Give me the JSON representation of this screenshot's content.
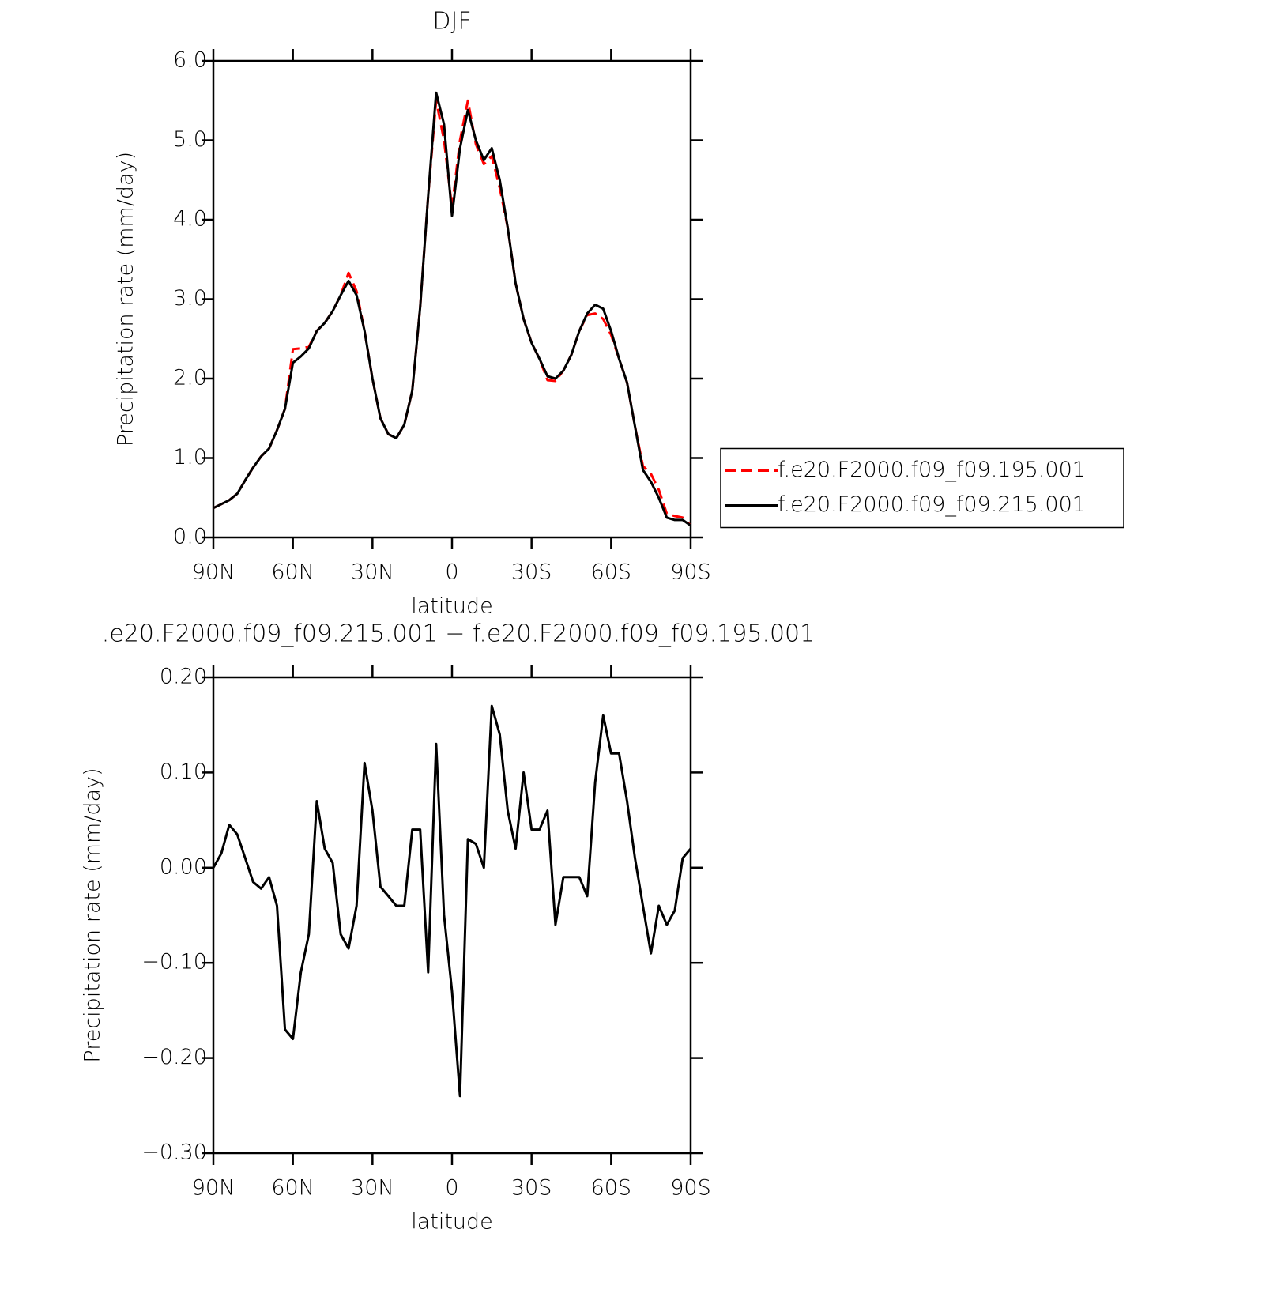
{
  "chart_data": [
    {
      "type": "line",
      "title": "DJF",
      "xlabel": "latitude",
      "ylabel": "Precipitation rate (mm/day)",
      "x": [
        90,
        87,
        84,
        81,
        78,
        75,
        72,
        69,
        66,
        63,
        60,
        57,
        54,
        51,
        48,
        45,
        42,
        39,
        36,
        33,
        30,
        27,
        24,
        21,
        18,
        15,
        12,
        9,
        6,
        3,
        0,
        -3,
        -6,
        -9,
        -12,
        -15,
        -18,
        -21,
        -24,
        -27,
        -30,
        -33,
        -36,
        -39,
        -42,
        -45,
        -48,
        -51,
        -54,
        -57,
        -60,
        -63,
        -66,
        -69,
        -72,
        -75,
        -78,
        -81,
        -84,
        -87,
        -90
      ],
      "series": [
        {
          "name": "f.e20.F2000.f09_f09.195.001",
          "color": "#ff0000",
          "linestyle": "dashed",
          "values": [
            0.37,
            0.42,
            0.47,
            0.55,
            0.72,
            0.88,
            1.02,
            1.12,
            1.35,
            1.62,
            2.37,
            2.38,
            2.4,
            2.6,
            2.7,
            2.85,
            3.05,
            3.33,
            3.1,
            2.6,
            2.0,
            1.5,
            1.3,
            1.25,
            1.42,
            1.85,
            2.9,
            4.3,
            5.5,
            5.0,
            4.15,
            5.0,
            5.5,
            4.95,
            4.7,
            4.8,
            4.4,
            3.9,
            3.2,
            2.75,
            2.45,
            2.25,
            1.98,
            1.97,
            2.1,
            2.3,
            2.6,
            2.8,
            2.82,
            2.75,
            2.55,
            2.25,
            1.95,
            1.4,
            0.9,
            0.8,
            0.6,
            0.3,
            0.27,
            0.25,
            0.15
          ]
        },
        {
          "name": "f.e20.F2000.f09_f09.215.001",
          "color": "#000000",
          "linestyle": "solid",
          "values": [
            0.37,
            0.42,
            0.47,
            0.55,
            0.72,
            0.88,
            1.02,
            1.12,
            1.35,
            1.62,
            2.2,
            2.28,
            2.38,
            2.6,
            2.7,
            2.85,
            3.05,
            3.23,
            3.05,
            2.6,
            2.0,
            1.5,
            1.3,
            1.25,
            1.42,
            1.85,
            2.9,
            4.3,
            5.6,
            5.2,
            4.05,
            4.9,
            5.38,
            5.0,
            4.75,
            4.9,
            4.5,
            3.9,
            3.2,
            2.75,
            2.45,
            2.25,
            2.03,
            2.0,
            2.1,
            2.3,
            2.6,
            2.82,
            2.93,
            2.88,
            2.6,
            2.25,
            1.95,
            1.4,
            0.85,
            0.7,
            0.5,
            0.25,
            0.22,
            0.22,
            0.15
          ]
        }
      ],
      "xlim": [
        90,
        -90
      ],
      "xticks": [
        {
          "value": 90,
          "label": "90N"
        },
        {
          "value": 60,
          "label": "60N"
        },
        {
          "value": 30,
          "label": "30N"
        },
        0,
        {
          "value": -30,
          "label": "30S"
        },
        {
          "value": -60,
          "label": "60S"
        },
        {
          "value": -90,
          "label": "90S"
        }
      ],
      "ylim": [
        0,
        6
      ],
      "yticks": [
        {
          "value": 0,
          "label": "0.0"
        },
        {
          "value": 1,
          "label": "1.0"
        },
        {
          "value": 2,
          "label": "2.0"
        },
        {
          "value": 3,
          "label": "3.0"
        },
        {
          "value": 4,
          "label": "4.0"
        },
        {
          "value": 5,
          "label": "5.0"
        },
        {
          "value": 6,
          "label": "6.0"
        }
      ],
      "legend": "right"
    },
    {
      "type": "line",
      "title": ".e20.F2000.f09_f09.215.001 − f.e20.F2000.f09_f09.195.001",
      "xlabel": "latitude",
      "ylabel": "Precipitation rate (mm/day)",
      "x": [
        90,
        87,
        84,
        81,
        78,
        75,
        72,
        69,
        66,
        63,
        60,
        57,
        54,
        51,
        48,
        45,
        42,
        39,
        36,
        33,
        30,
        27,
        24,
        21,
        18,
        15,
        12,
        9,
        6,
        3,
        0,
        -3,
        -6,
        -9,
        -12,
        -15,
        -18,
        -21,
        -24,
        -27,
        -30,
        -33,
        -36,
        -39,
        -42,
        -45,
        -48,
        -51,
        -54,
        -57,
        -60,
        -63,
        -66,
        -69,
        -72,
        -75,
        -78,
        -81,
        -84,
        -87,
        -90
      ],
      "series": [
        {
          "color": "#000000",
          "linestyle": "solid",
          "values": [
            0.0,
            0.015,
            0.045,
            0.035,
            0.01,
            -0.015,
            -0.022,
            -0.01,
            -0.04,
            -0.17,
            -0.18,
            -0.11,
            -0.07,
            0.07,
            0.02,
            0.005,
            -0.07,
            -0.085,
            -0.04,
            0.11,
            0.06,
            -0.02,
            -0.03,
            -0.04,
            -0.04,
            0.04,
            0.04,
            -0.11,
            0.13,
            -0.05,
            -0.13,
            -0.24,
            0.03,
            0.025,
            0.0,
            0.17,
            0.14,
            0.06,
            0.02,
            0.1,
            0.04,
            0.04,
            0.06,
            -0.06,
            -0.01,
            -0.01,
            -0.01,
            -0.03,
            0.09,
            0.16,
            0.12,
            0.12,
            0.07,
            0.01,
            -0.04,
            -0.09,
            -0.04,
            -0.06,
            -0.045,
            0.01,
            0.02
          ]
        }
      ],
      "xlim": [
        90,
        -90
      ],
      "xticks": [
        {
          "value": 90,
          "label": "90N"
        },
        {
          "value": 60,
          "label": "60N"
        },
        {
          "value": 30,
          "label": "30N"
        },
        0,
        {
          "value": -30,
          "label": "30S"
        },
        {
          "value": -60,
          "label": "60S"
        },
        {
          "value": -90,
          "label": "90S"
        }
      ],
      "ylim": [
        -0.3,
        0.2
      ],
      "yticks": [
        {
          "value": -0.3,
          "label": "−0.30"
        },
        {
          "value": -0.2,
          "label": "−0.20"
        },
        {
          "value": -0.1,
          "label": "−0.10"
        },
        {
          "value": 0,
          "label": "0.00"
        },
        {
          "value": 0.1,
          "label": "0.10"
        },
        {
          "value": 0.2,
          "label": "0.20"
        }
      ]
    }
  ]
}
